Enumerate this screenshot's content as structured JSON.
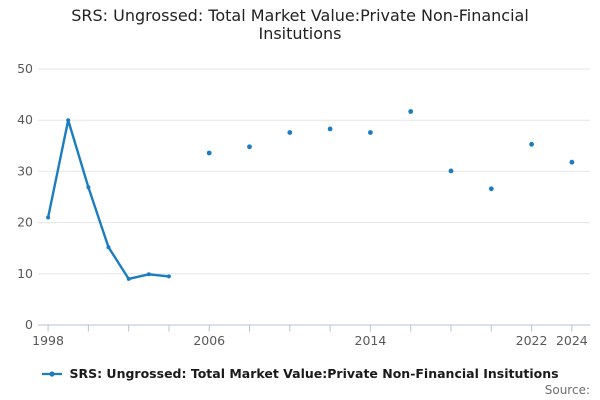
{
  "title": "SRS: Ungrossed: Total Market Value:Private Non-Financial Insitutions",
  "legend": {
    "label": "SRS: Ungrossed: Total Market Value:Private Non-Financial Insitutions"
  },
  "source_label": "Source:",
  "colors": {
    "series": "#1b7dbf",
    "grid": "#e6e6e6",
    "axis": "#b7c3d4",
    "tick_label": "#595959",
    "title": "#222222",
    "legend_text": "#1a1a1a",
    "source": "#6e6e6e"
  },
  "chart_data": {
    "type": "line",
    "title": "SRS: Ungrossed: Total Market Value:Private Non-Financial Insitutions",
    "x": [
      1998,
      1999,
      2000,
      2001,
      2002,
      2003,
      2004,
      2006,
      2008,
      2010,
      2012,
      2014,
      2016,
      2018,
      2020,
      2022,
      2024
    ],
    "y": [
      21.0,
      40.0,
      26.9,
      15.2,
      9.0,
      9.9,
      9.5,
      33.6,
      34.8,
      37.6,
      38.3,
      37.6,
      41.7,
      30.1,
      26.6,
      35.3,
      31.8
    ],
    "series_name": "SRS: Ungrossed: Total Market Value:Private Non-Financial Insitutions",
    "connect_gap_max_years": 1,
    "xlim": [
      1997.5,
      2024.9
    ],
    "ylim": [
      0,
      50
    ],
    "yticks": [
      0,
      10,
      20,
      30,
      40,
      50
    ],
    "xticks": [
      1998,
      2000,
      2002,
      2004,
      2006,
      2008,
      2010,
      2012,
      2014,
      2016,
      2018,
      2020,
      2022,
      2024
    ],
    "xtick_labels": [
      1998,
      2006,
      2014,
      2022,
      2024
    ],
    "grid": "horizontal",
    "legend_position": "bottom"
  }
}
